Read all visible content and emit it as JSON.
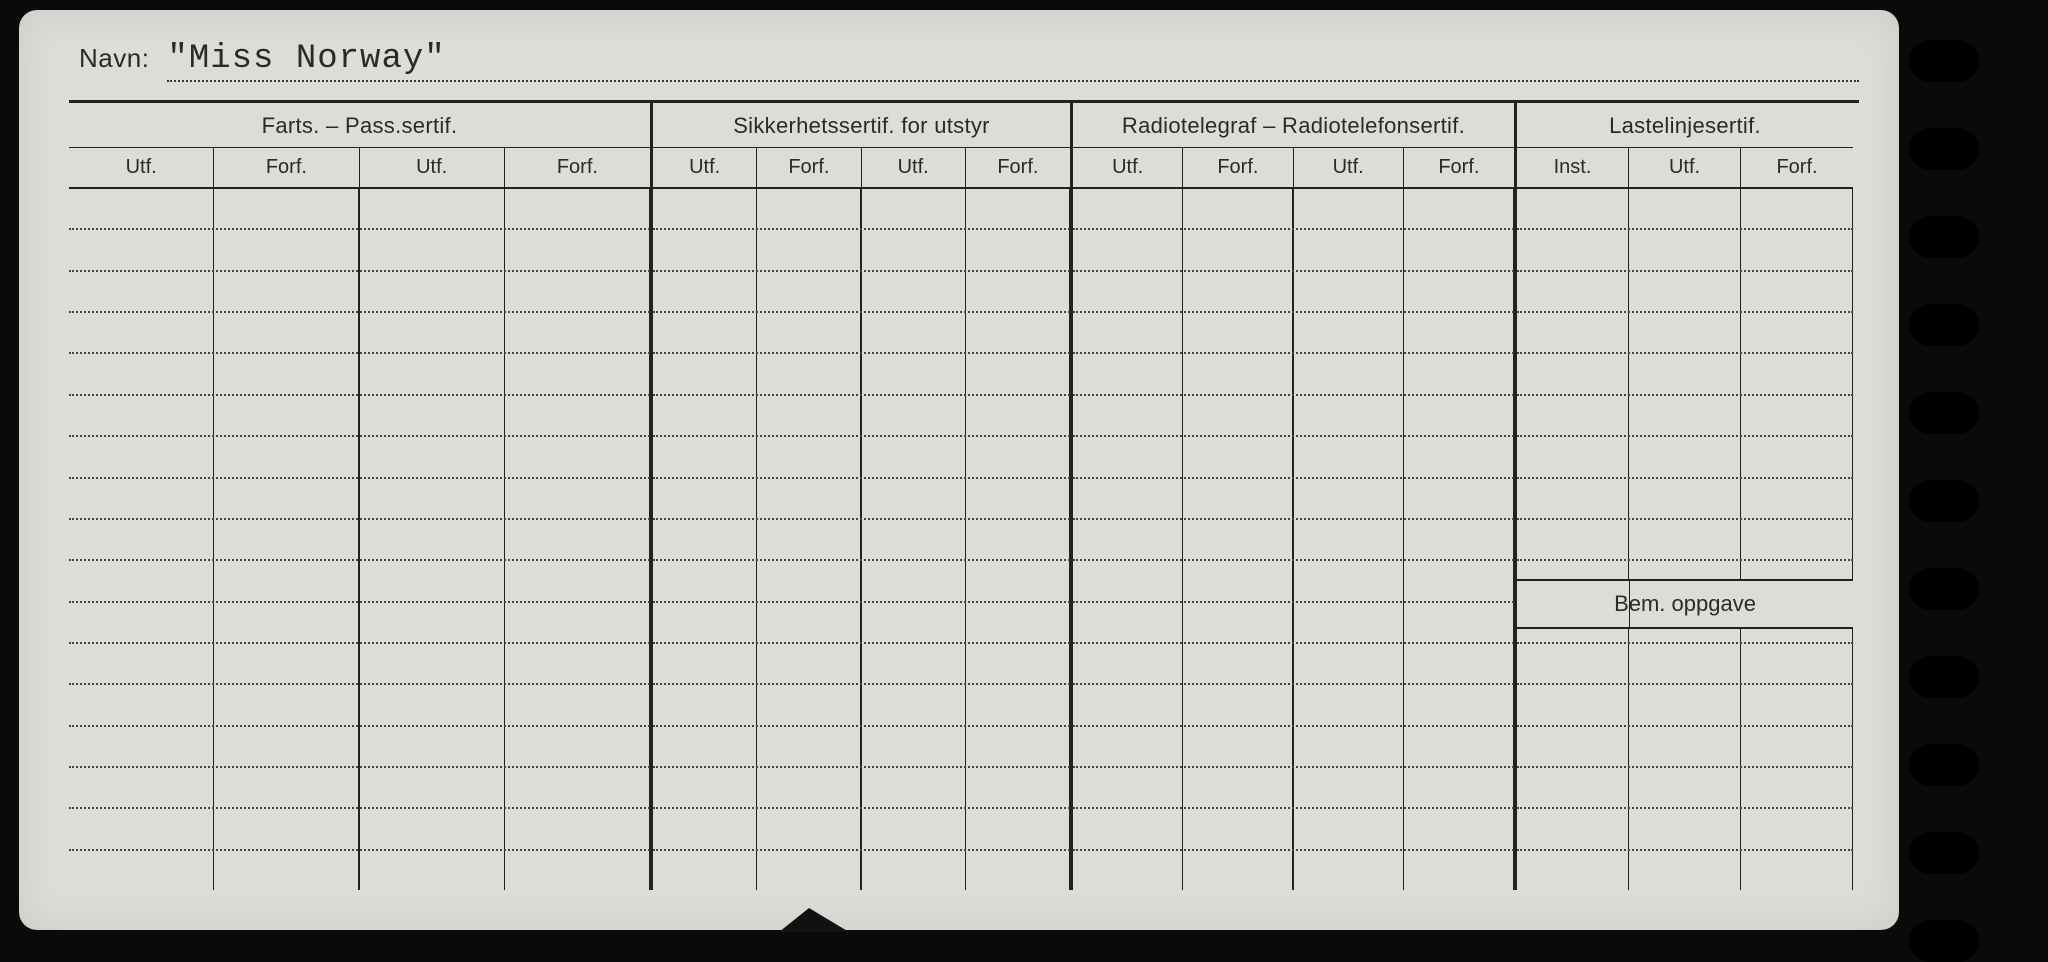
{
  "name_label": "Navn:",
  "name_value": "\"Miss Norway\"",
  "sections": [
    {
      "title": "Farts. – Pass.sertif.",
      "cols": [
        "Utf.",
        "Forf.",
        "Utf.",
        "Forf."
      ]
    },
    {
      "title": "Sikkerhetssertif. for utstyr",
      "cols": [
        "Utf.",
        "Forf.",
        "Utf.",
        "Forf."
      ]
    },
    {
      "title": "Radiotelegraf – Radiotelefonsertif.",
      "cols": [
        "Utf.",
        "Forf.",
        "Utf.",
        "Forf."
      ]
    },
    {
      "title": "Lastelinjesertif.",
      "cols": [
        "Inst.",
        "Utf.",
        "Forf."
      ]
    }
  ],
  "bem_label": "Bem. oppgave",
  "row_count": 17,
  "colors": {
    "page_bg": "#0a0a0a",
    "card_bg": "#dcddd7",
    "ink": "#222222",
    "dotted": "#444444"
  },
  "binder_hole_count": 11
}
